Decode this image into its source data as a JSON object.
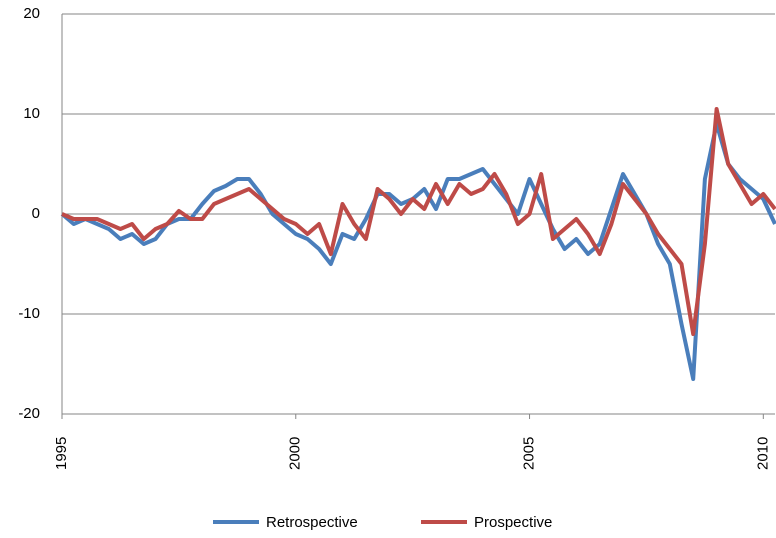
{
  "chart_data": {
    "type": "line",
    "x": [
      1995,
      1995.25,
      1995.5,
      1995.75,
      1996,
      1996.25,
      1996.5,
      1996.75,
      1997,
      1997.25,
      1997.5,
      1997.75,
      1998,
      1998.25,
      1998.5,
      1998.75,
      1999,
      1999.25,
      1999.5,
      1999.75,
      2000,
      2000.25,
      2000.5,
      2000.75,
      2001,
      2001.25,
      2001.5,
      2001.75,
      2002,
      2002.25,
      2002.5,
      2002.75,
      2003,
      2003.25,
      2003.5,
      2003.75,
      2004,
      2004.25,
      2004.5,
      2004.75,
      2005,
      2005.25,
      2005.5,
      2005.75,
      2006,
      2006.25,
      2006.5,
      2006.75,
      2007,
      2007.25,
      2007.5,
      2007.75,
      2008,
      2008.25,
      2008.5,
      2008.75,
      2009,
      2009.25,
      2009.5,
      2009.75,
      2010,
      2010.25
    ],
    "series": [
      {
        "name": "Retrospective",
        "color": "#4a7ebb",
        "values": [
          0,
          -1,
          -0.5,
          -1,
          -1.5,
          -2.5,
          -2,
          -3,
          -2.5,
          -1,
          -0.5,
          -0.5,
          1,
          2.3,
          2.8,
          3.5,
          3.5,
          2,
          0,
          -1,
          -2,
          -2.5,
          -3.5,
          -5,
          -2,
          -2.5,
          -0.5,
          2,
          2,
          1,
          1.5,
          2.5,
          0.5,
          3.5,
          3.5,
          4,
          4.5,
          3,
          1.5,
          0,
          3.5,
          1,
          -1.5,
          -3.5,
          -2.5,
          -4,
          -3,
          0.5,
          4,
          2,
          0,
          -3,
          -5,
          -11,
          -16.5,
          3.5,
          9,
          5,
          3.5,
          2.5,
          1.5,
          -1
        ]
      },
      {
        "name": "Prospective",
        "color": "#be4b48",
        "values": [
          0,
          -0.5,
          -0.5,
          -0.5,
          -1,
          -1.5,
          -1,
          -2.5,
          -1.5,
          -1,
          0.3,
          -0.5,
          -0.5,
          1,
          1.5,
          2,
          2.5,
          1.5,
          0.5,
          -0.5,
          -1,
          -2,
          -1,
          -4,
          1,
          -1,
          -2.5,
          2.5,
          1.5,
          0,
          1.5,
          0.5,
          3,
          1,
          3,
          2,
          2.5,
          4,
          2,
          -1,
          0,
          4,
          -2.5,
          -1.5,
          -0.5,
          -2,
          -4,
          -1,
          3,
          1.5,
          0,
          -2,
          -3.5,
          -5,
          -12,
          -3,
          10.5,
          5,
          3,
          1,
          2,
          0.5
        ]
      }
    ],
    "xlim": [
      1995,
      2010.25
    ],
    "xticks": [
      1995,
      2000,
      2005,
      2010
    ],
    "ylim": [
      -20,
      20
    ],
    "yticks": [
      -20,
      -10,
      0,
      10,
      20
    ],
    "grid": true,
    "legend": "bottom"
  }
}
